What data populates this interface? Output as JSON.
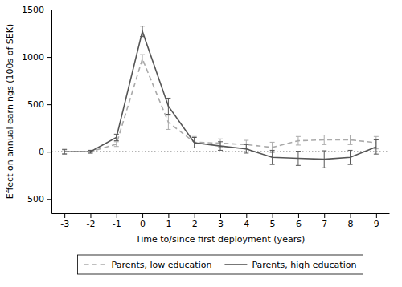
{
  "chart_data": {
    "type": "line",
    "xlabel": "Time to/since first deployment (years)",
    "ylabel": "Effect on annual earnings (100s of SEK)",
    "x": [
      -3,
      -2,
      -1,
      0,
      1,
      2,
      3,
      4,
      5,
      6,
      7,
      8,
      9
    ],
    "series": [
      {
        "name": "Parents, low education",
        "color": "#aaaaaa",
        "line_style": "dashed",
        "values": [
          0,
          0,
          80,
          980,
          310,
          100,
          90,
          75,
          45,
          115,
          125,
          125,
          95
        ],
        "errors": [
          20,
          15,
          25,
          45,
          75,
          60,
          45,
          45,
          55,
          45,
          50,
          50,
          65
        ]
      },
      {
        "name": "Parents, high education",
        "color": "#555555",
        "line_style": "solid",
        "values": [
          0,
          0,
          150,
          1270,
          480,
          95,
          60,
          30,
          -60,
          -70,
          -80,
          -60,
          50
        ],
        "errors": [
          25,
          15,
          35,
          55,
          85,
          55,
          45,
          45,
          75,
          75,
          90,
          75,
          75
        ]
      }
    ],
    "reference_y": 0,
    "xlim": [
      -3.5,
      9.5
    ],
    "xticks": [
      -3,
      -2,
      -1,
      0,
      1,
      2,
      3,
      4,
      5,
      6,
      7,
      8,
      9
    ],
    "ylim": [
      -650,
      1500
    ],
    "yticks": [
      -500,
      0,
      500,
      1000,
      1500
    ],
    "grid": false,
    "legend": "bottom"
  }
}
